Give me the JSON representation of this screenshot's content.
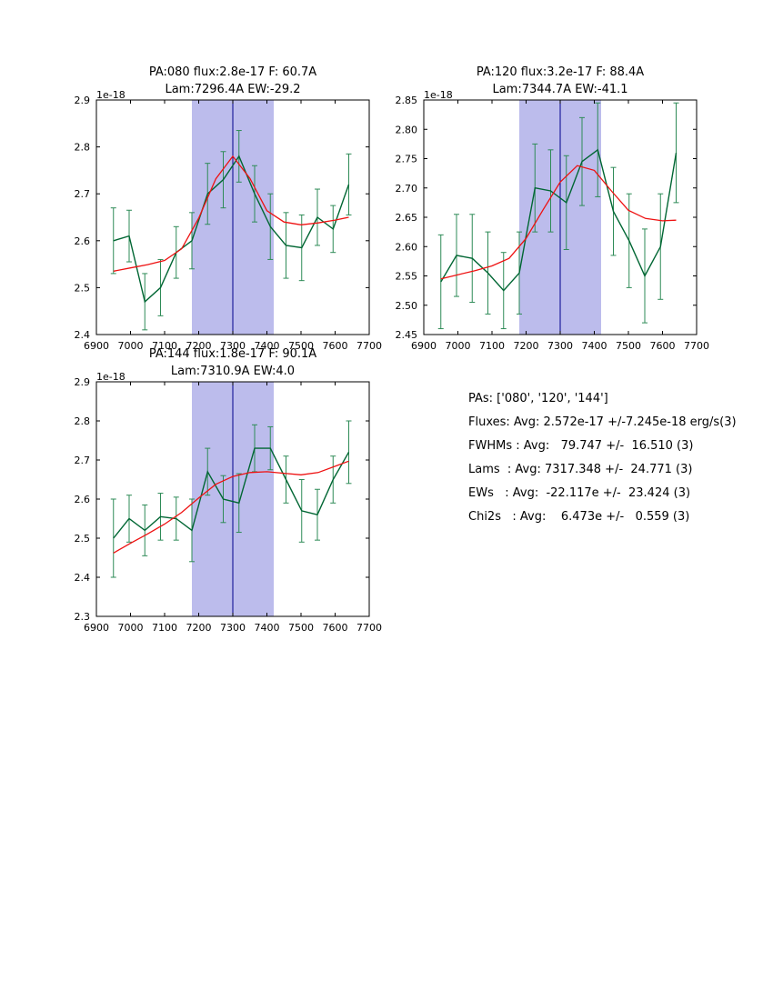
{
  "colors": {
    "data": "#006633",
    "err": "#2e8b57",
    "fit": "#ee1111",
    "band": "#bcbcec",
    "vline": "#00008b",
    "frame": "#000000"
  },
  "stats": {
    "lines": [
      "PAs: ['080', '120', '144']",
      "Fluxes: Avg: 2.572e-17 +/-7.245e-18 erg/s(3)",
      "FWHMs : Avg:   79.747 +/-  16.510 (3)",
      "Lams  : Avg: 7317.348 +/-  24.771 (3)",
      "EWs   : Avg:  -22.117e +/-  23.424 (3)",
      "Chi2s   : Avg:    6.473e +/-   0.559 (3)"
    ]
  },
  "chart_data": [
    {
      "type": "line",
      "title_line1": "PA:080 flux:2.8e-17 F: 60.7A",
      "title_line2": "Lam:7296.4A EW:-29.2",
      "offset_label": "1e-18",
      "xlim": [
        6900,
        7700
      ],
      "ylim": [
        2.4,
        2.9
      ],
      "xticks": [
        6900,
        7000,
        7100,
        7200,
        7300,
        7400,
        7500,
        7600,
        7700
      ],
      "yticks": [
        2.4,
        2.5,
        2.6,
        2.7,
        2.8,
        2.9
      ],
      "ytick_labels": [
        "2.4",
        "2.5",
        "2.6",
        "2.7",
        "2.8",
        "2.9"
      ],
      "band": [
        7180,
        7420
      ],
      "vline": 7300,
      "x": [
        6950,
        6996,
        7042,
        7088,
        7134,
        7180,
        7226,
        7272,
        7318,
        7364,
        7410,
        7456,
        7502,
        7548,
        7594,
        7640
      ],
      "y": [
        2.6,
        2.61,
        2.47,
        2.5,
        2.575,
        2.6,
        2.7,
        2.73,
        2.78,
        2.7,
        2.63,
        2.59,
        2.585,
        2.65,
        2.625,
        2.72
      ],
      "yerr": [
        0.07,
        0.055,
        0.06,
        0.06,
        0.055,
        0.06,
        0.065,
        0.06,
        0.055,
        0.06,
        0.07,
        0.07,
        0.07,
        0.06,
        0.05,
        0.065
      ],
      "fit_x": [
        6950,
        7000,
        7050,
        7100,
        7150,
        7200,
        7250,
        7300,
        7350,
        7400,
        7450,
        7500,
        7550,
        7600,
        7640
      ],
      "fit_y": [
        2.535,
        2.542,
        2.549,
        2.558,
        2.583,
        2.648,
        2.732,
        2.78,
        2.733,
        2.664,
        2.64,
        2.634,
        2.638,
        2.644,
        2.65
      ]
    },
    {
      "type": "line",
      "title_line1": "PA:120 flux:3.2e-17 F: 88.4A",
      "title_line2": "Lam:7344.7A EW:-41.1",
      "offset_label": "1e-18",
      "xlim": [
        6900,
        7700
      ],
      "ylim": [
        2.45,
        2.85
      ],
      "xticks": [
        6900,
        7000,
        7100,
        7200,
        7300,
        7400,
        7500,
        7600,
        7700
      ],
      "yticks": [
        2.45,
        2.5,
        2.55,
        2.6,
        2.65,
        2.7,
        2.75,
        2.8,
        2.85
      ],
      "ytick_labels": [
        "2.45",
        "2.50",
        "2.55",
        "2.60",
        "2.65",
        "2.70",
        "2.75",
        "2.80",
        "2.85"
      ],
      "band": [
        7180,
        7420
      ],
      "vline": 7300,
      "x": [
        6950,
        6996,
        7042,
        7088,
        7134,
        7180,
        7226,
        7272,
        7318,
        7364,
        7410,
        7456,
        7502,
        7548,
        7594,
        7640
      ],
      "y": [
        2.54,
        2.585,
        2.58,
        2.555,
        2.525,
        2.555,
        2.7,
        2.695,
        2.675,
        2.745,
        2.765,
        2.66,
        2.61,
        2.55,
        2.6,
        2.76
      ],
      "yerr": [
        0.08,
        0.07,
        0.075,
        0.07,
        0.065,
        0.07,
        0.075,
        0.07,
        0.08,
        0.075,
        0.08,
        0.075,
        0.08,
        0.08,
        0.09,
        0.085
      ],
      "fit_x": [
        6950,
        7000,
        7050,
        7100,
        7150,
        7200,
        7250,
        7300,
        7350,
        7400,
        7450,
        7500,
        7550,
        7600,
        7640
      ],
      "fit_y": [
        2.545,
        2.552,
        2.559,
        2.567,
        2.58,
        2.614,
        2.663,
        2.71,
        2.738,
        2.73,
        2.695,
        2.662,
        2.648,
        2.644,
        2.645
      ]
    },
    {
      "type": "line",
      "title_line1": "PA:144 flux:1.8e-17 F: 90.1A",
      "title_line2": "Lam:7310.9A EW:4.0",
      "offset_label": "1e-18",
      "xlim": [
        6900,
        7700
      ],
      "ylim": [
        2.3,
        2.9
      ],
      "xticks": [
        6900,
        7000,
        7100,
        7200,
        7300,
        7400,
        7500,
        7600,
        7700
      ],
      "yticks": [
        2.3,
        2.4,
        2.5,
        2.6,
        2.7,
        2.8,
        2.9
      ],
      "ytick_labels": [
        "2.3",
        "2.4",
        "2.5",
        "2.6",
        "2.7",
        "2.8",
        "2.9"
      ],
      "band": [
        7180,
        7420
      ],
      "vline": 7300,
      "x": [
        6950,
        6996,
        7042,
        7088,
        7134,
        7180,
        7226,
        7272,
        7318,
        7364,
        7410,
        7456,
        7502,
        7548,
        7594,
        7640
      ],
      "y": [
        2.5,
        2.55,
        2.52,
        2.555,
        2.55,
        2.52,
        2.67,
        2.6,
        2.59,
        2.73,
        2.73,
        2.65,
        2.57,
        2.56,
        2.65,
        2.72
      ],
      "yerr": [
        0.1,
        0.06,
        0.065,
        0.06,
        0.055,
        0.08,
        0.06,
        0.06,
        0.075,
        0.06,
        0.055,
        0.06,
        0.08,
        0.065,
        0.06,
        0.08
      ],
      "fit_x": [
        6950,
        7000,
        7050,
        7100,
        7150,
        7200,
        7250,
        7300,
        7350,
        7400,
        7450,
        7500,
        7550,
        7600,
        7640
      ],
      "fit_y": [
        2.462,
        2.487,
        2.511,
        2.536,
        2.566,
        2.603,
        2.638,
        2.658,
        2.668,
        2.67,
        2.666,
        2.662,
        2.668,
        2.684,
        2.697
      ]
    }
  ]
}
